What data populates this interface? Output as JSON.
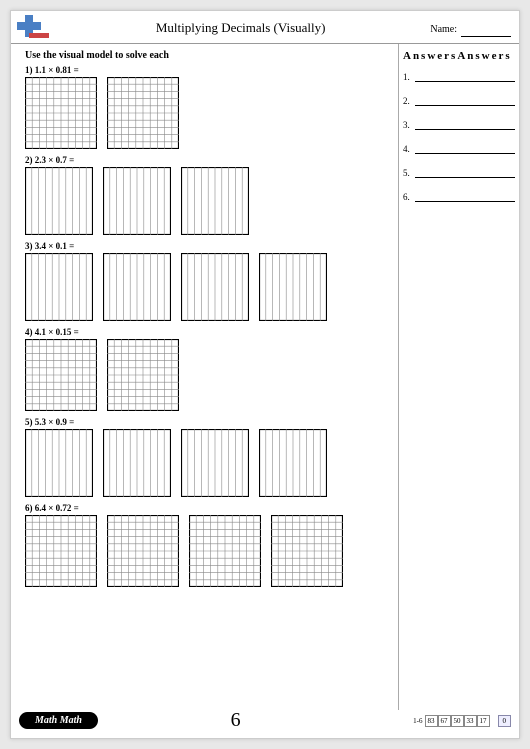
{
  "header": {
    "title": "Multiplying Decimals (Visually)",
    "name_label": "Name:"
  },
  "instruction": "Use the visual model to solve each",
  "problems": [
    {
      "num": "1)",
      "expr": "1.1 × 0.81 =",
      "grids": 2,
      "type": "hundredths",
      "size": 72
    },
    {
      "num": "2)",
      "expr": "2.3 × 0.7 =",
      "grids": 3,
      "type": "tenths",
      "size": 68
    },
    {
      "num": "3)",
      "expr": "3.4 × 0.1 =",
      "grids": 4,
      "type": "tenths",
      "size": 68
    },
    {
      "num": "4)",
      "expr": "4.1 × 0.15 =",
      "grids": 2,
      "type": "hundredths",
      "size": 72
    },
    {
      "num": "5)",
      "expr": "5.3 × 0.9 =",
      "grids": 4,
      "type": "tenths",
      "size": 68
    },
    {
      "num": "6)",
      "expr": "6.4 × 0.72 =",
      "grids": 4,
      "type": "hundredths",
      "size": 72
    }
  ],
  "answers": {
    "title": "Answers",
    "count": 6
  },
  "footer": {
    "brand": "Math Math",
    "page": "6",
    "range": "1-6",
    "scores": [
      "83",
      "67",
      "50",
      "33",
      "17"
    ],
    "final": "0"
  },
  "colors": {
    "grid_line": "#888888",
    "grid_border": "#000000",
    "page_bg": "#ffffff",
    "outer_bg": "#e8e8e8"
  }
}
